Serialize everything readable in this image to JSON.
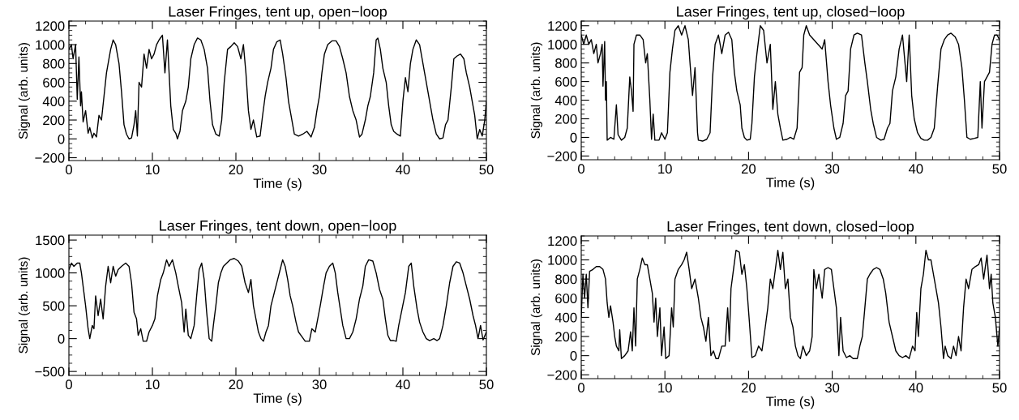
{
  "chart_data": [
    {
      "type": "line",
      "title": "Laser Fringes, tent up, open−loop",
      "xlabel": "Time (s)",
      "ylabel": "Signal (arb. units)",
      "xlim": [
        0,
        50
      ],
      "ylim": [
        -230,
        1250
      ],
      "xticks": [
        0,
        10,
        20,
        30,
        40,
        50
      ],
      "yticks": [
        -200,
        0,
        200,
        400,
        600,
        800,
        1000,
        1200
      ],
      "x": [
        0,
        0.3,
        0.5,
        0.8,
        1.0,
        1.2,
        1.4,
        1.5,
        1.7,
        2.0,
        2.3,
        2.5,
        2.8,
        3.0,
        3.3,
        3.6,
        3.9,
        4.2,
        4.5,
        4.8,
        5.0,
        5.3,
        5.6,
        6.0,
        6.3,
        6.6,
        6.9,
        7.2,
        7.5,
        7.8,
        8.0,
        8.2,
        8.4,
        8.7,
        9.0,
        9.3,
        9.6,
        9.9,
        10.2,
        10.5,
        10.8,
        11.2,
        11.5,
        11.8,
        12.0,
        12.2,
        12.5,
        12.8,
        13.0,
        13.3,
        13.6,
        14.0,
        14.3,
        14.6,
        15.0,
        15.4,
        15.8,
        16.2,
        16.6,
        16.9,
        17.2,
        17.6,
        18.0,
        18.3,
        18.6,
        19.0,
        19.4,
        19.8,
        20.2,
        20.6,
        20.9,
        21.2,
        21.5,
        21.8,
        22.1,
        22.5,
        22.9,
        23.2,
        23.5,
        23.8,
        24.2,
        24.5,
        24.9,
        25.3,
        25.6,
        26.0,
        26.3,
        26.6,
        27.0,
        27.5,
        28.0,
        28.5,
        29.0,
        29.4,
        29.7,
        30.0,
        30.3,
        30.6,
        31.0,
        31.5,
        32.0,
        32.4,
        32.8,
        33.2,
        33.6,
        34.0,
        34.4,
        34.8,
        35.1,
        35.5,
        35.8,
        36.1,
        36.5,
        36.8,
        37.0,
        37.3,
        37.6,
        38.0,
        38.3,
        38.6,
        38.9,
        39.3,
        39.7,
        40.0,
        40.3,
        40.6,
        40.9,
        41.2,
        41.6,
        42.0,
        42.3,
        42.6,
        43.0,
        43.3,
        43.6,
        44.0,
        44.4,
        44.8,
        45.1,
        45.4,
        45.8,
        46.1,
        46.5,
        46.9,
        47.3,
        47.6,
        48.0,
        48.3,
        48.6,
        48.9,
        49.2,
        49.5,
        49.8,
        50.0
      ],
      "series": [
        {
          "color": "#000000",
          "values": [
            950,
            1000,
            850,
            1000,
            420,
            870,
            350,
            500,
            180,
            300,
            60,
            120,
            10,
            60,
            20,
            250,
            200,
            450,
            700,
            850,
            950,
            1050,
            1000,
            800,
            500,
            150,
            50,
            0,
            10,
            150,
            300,
            30,
            600,
            550,
            900,
            750,
            950,
            850,
            900,
            1000,
            1050,
            1100,
            700,
            1050,
            700,
            350,
            100,
            60,
            0,
            80,
            300,
            400,
            550,
            850,
            1000,
            1070,
            1050,
            950,
            750,
            400,
            150,
            50,
            30,
            200,
            600,
            950,
            980,
            1020,
            980,
            850,
            1000,
            700,
            300,
            100,
            200,
            20,
            30,
            250,
            450,
            600,
            750,
            950,
            1030,
            1050,
            900,
            650,
            400,
            250,
            50,
            30,
            50,
            80,
            20,
            120,
            300,
            450,
            700,
            900,
            1000,
            1040,
            1040,
            980,
            850,
            700,
            450,
            300,
            200,
            20,
            50,
            200,
            350,
            450,
            700,
            1050,
            1070,
            950,
            750,
            600,
            350,
            150,
            80,
            50,
            30,
            400,
            650,
            500,
            800,
            950,
            1050,
            1000,
            850,
            700,
            500,
            350,
            200,
            50,
            0,
            10,
            150,
            200,
            550,
            850,
            880,
            900,
            850,
            700,
            550,
            400,
            250,
            0,
            100,
            30,
            200,
            400
          ]
        }
      ]
    },
    {
      "type": "line",
      "title": "Laser Fringes, tent up, closed−loop",
      "xlabel": "Time (s)",
      "ylabel": "Signal (arb. units)",
      "xlim": [
        0,
        50
      ],
      "ylim": [
        -240,
        1250
      ],
      "xticks": [
        0,
        10,
        20,
        30,
        40,
        50
      ],
      "yticks": [
        -200,
        0,
        200,
        400,
        600,
        800,
        1000,
        1200
      ],
      "x": [
        0,
        0.3,
        0.6,
        0.9,
        1.2,
        1.5,
        1.8,
        2.0,
        2.3,
        2.5,
        2.6,
        2.8,
        2.9,
        3.0,
        3.1,
        3.5,
        3.9,
        4.2,
        4.4,
        4.8,
        5.2,
        5.5,
        5.8,
        6.0,
        6.2,
        6.3,
        6.6,
        7.0,
        7.4,
        7.7,
        7.9,
        8.2,
        8.4,
        8.6,
        8.8,
        9.3,
        9.6,
        10.0,
        10.3,
        10.6,
        10.9,
        11.2,
        11.6,
        12.0,
        12.4,
        12.8,
        13.0,
        13.3,
        13.6,
        13.9,
        14.0,
        14.5,
        15.0,
        15.4,
        15.7,
        16.0,
        16.4,
        16.8,
        17.2,
        17.6,
        18.0,
        18.3,
        18.6,
        19.0,
        19.2,
        19.5,
        19.8,
        20.2,
        20.4,
        20.7,
        21.0,
        21.4,
        21.8,
        22.2,
        22.6,
        22.9,
        23.2,
        23.5,
        23.8,
        24.1,
        24.6,
        25.0,
        25.4,
        25.8,
        26.1,
        26.4,
        26.6,
        26.9,
        27.3,
        27.8,
        28.3,
        28.8,
        29.1,
        29.5,
        29.8,
        30.2,
        30.5,
        30.9,
        31.3,
        31.6,
        31.9,
        32.2,
        32.6,
        33.0,
        33.5,
        33.9,
        34.2,
        34.6,
        34.9,
        35.3,
        35.8,
        36.2,
        36.6,
        36.9,
        37.2,
        37.6,
        38.0,
        38.4,
        38.9,
        39.2,
        39.5,
        39.8,
        40.2,
        40.6,
        41.0,
        41.4,
        41.8,
        42.2,
        42.6,
        43.0,
        43.4,
        43.8,
        44.2,
        44.7,
        45.1,
        45.5,
        45.8,
        46.1,
        46.5,
        47.0,
        47.4,
        47.7,
        47.9,
        48.2,
        48.5,
        48.8,
        49.1,
        49.4,
        49.7,
        50.0
      ],
      "series": [
        {
          "color": "#000000",
          "values": [
            1100,
            1000,
            1100,
            1000,
            1050,
            900,
            1000,
            800,
            900,
            1000,
            550,
            1030,
            400,
            600,
            -30,
            0,
            -20,
            350,
            30,
            -30,
            0,
            100,
            650,
            500,
            280,
            1000,
            1100,
            1100,
            1050,
            800,
            900,
            400,
            -20,
            250,
            -30,
            -30,
            50,
            -20,
            50,
            700,
            950,
            1150,
            1200,
            1100,
            1200,
            1050,
            800,
            450,
            750,
            50,
            -30,
            -40,
            -20,
            50,
            650,
            1000,
            1100,
            900,
            1100,
            1130,
            1050,
            700,
            500,
            350,
            100,
            0,
            -30,
            -20,
            150,
            650,
            900,
            1200,
            1150,
            800,
            1000,
            300,
            600,
            250,
            100,
            -30,
            -20,
            0,
            -20,
            100,
            700,
            750,
            1100,
            1200,
            1100,
            1050,
            1000,
            950,
            1050,
            600,
            350,
            100,
            -20,
            0,
            150,
            450,
            500,
            950,
            1100,
            1120,
            1100,
            800,
            600,
            300,
            150,
            0,
            -30,
            -20,
            100,
            150,
            500,
            650,
            950,
            1100,
            600,
            1100,
            450,
            200,
            50,
            -10,
            -30,
            -30,
            0,
            100,
            550,
            950,
            1050,
            1100,
            1120,
            1080,
            1000,
            750,
            400,
            0,
            -20,
            -10,
            0,
            600,
            100,
            600,
            650,
            700,
            1000,
            1100,
            1100,
            1050
          ]
        }
      ]
    },
    {
      "type": "line",
      "title": "Laser Fringes, tent down, open−loop",
      "xlabel": "Time (s)",
      "ylabel": "Signal (arb. units)",
      "xlim": [
        0,
        50
      ],
      "ylim": [
        -560,
        1575
      ],
      "xticks": [
        0,
        10,
        20,
        30,
        40,
        50
      ],
      "yticks": [
        -500,
        0,
        500,
        1000,
        1500
      ],
      "x": [
        0,
        0.3,
        0.6,
        1.0,
        1.3,
        1.5,
        1.8,
        2.0,
        2.3,
        2.5,
        2.8,
        3.0,
        3.2,
        3.5,
        3.8,
        4.1,
        4.4,
        4.7,
        5.0,
        5.3,
        5.6,
        5.9,
        6.3,
        6.8,
        7.2,
        7.5,
        7.8,
        8.1,
        8.3,
        8.6,
        8.9,
        9.3,
        9.6,
        10.0,
        10.3,
        10.6,
        11.0,
        11.3,
        11.7,
        12.0,
        12.4,
        12.8,
        13.1,
        13.5,
        13.8,
        14.0,
        14.3,
        14.6,
        15.0,
        15.3,
        15.6,
        15.9,
        16.2,
        16.5,
        16.8,
        17.1,
        17.3,
        17.6,
        17.9,
        18.2,
        18.5,
        18.9,
        19.3,
        19.8,
        20.3,
        20.7,
        21.1,
        21.5,
        21.8,
        22.1,
        22.4,
        22.7,
        23.0,
        23.3,
        23.6,
        23.9,
        24.2,
        24.6,
        25.0,
        25.3,
        25.6,
        25.9,
        26.2,
        26.5,
        26.8,
        27.2,
        27.5,
        27.9,
        28.3,
        28.8,
        29.1,
        29.5,
        29.8,
        30.1,
        30.5,
        30.8,
        31.2,
        31.6,
        31.9,
        32.2,
        32.5,
        32.8,
        33.2,
        33.6,
        34.0,
        34.4,
        34.8,
        35.2,
        35.5,
        35.9,
        36.4,
        36.8,
        37.2,
        37.6,
        37.9,
        38.2,
        38.5,
        38.9,
        39.2,
        39.5,
        39.9,
        40.3,
        40.7,
        41.0,
        41.3,
        41.7,
        42.0,
        42.4,
        42.8,
        43.2,
        43.7,
        44.1,
        44.4,
        44.8,
        45.2,
        45.6,
        46.0,
        46.4,
        46.8,
        47.2,
        47.6,
        48.0,
        48.4,
        48.7,
        49.0,
        49.3,
        49.6,
        50.0
      ],
      "series": [
        {
          "color": "#000000",
          "values": [
            1050,
            1150,
            1100,
            1150,
            1150,
            1000,
            700,
            500,
            150,
            0,
            200,
            150,
            650,
            350,
            600,
            300,
            800,
            1100,
            850,
            1100,
            950,
            1050,
            1100,
            1150,
            1100,
            850,
            400,
            300,
            50,
            150,
            -40,
            -40,
            100,
            200,
            300,
            650,
            900,
            1000,
            1200,
            1100,
            1200,
            1000,
            800,
            550,
            100,
            450,
            50,
            0,
            200,
            650,
            1050,
            1150,
            900,
            400,
            0,
            -40,
            200,
            500,
            850,
            1000,
            1100,
            1150,
            1200,
            1220,
            1180,
            1100,
            850,
            700,
            900,
            500,
            300,
            100,
            0,
            -40,
            100,
            200,
            500,
            700,
            900,
            1050,
            1200,
            1100,
            900,
            650,
            500,
            250,
            100,
            30,
            -40,
            -40,
            150,
            100,
            300,
            500,
            800,
            1000,
            1100,
            1150,
            1000,
            700,
            450,
            200,
            0,
            0,
            100,
            300,
            600,
            800,
            1100,
            1200,
            1180,
            1000,
            750,
            600,
            300,
            50,
            -30,
            -30,
            -40,
            200,
            450,
            700,
            1100,
            1150,
            800,
            450,
            250,
            100,
            0,
            -30,
            0,
            -30,
            0,
            200,
            500,
            850,
            1100,
            1170,
            1150,
            1000,
            800,
            600,
            350,
            200,
            0,
            200,
            -20,
            100
          ]
        }
      ]
    },
    {
      "type": "line",
      "title": "Laser Fringes, tent down, closed−loop",
      "xlabel": "Time (s)",
      "ylabel": "Signal (arb. units)",
      "xlim": [
        0,
        50
      ],
      "ylim": [
        -240,
        1250
      ],
      "xticks": [
        0,
        10,
        20,
        30,
        40,
        50
      ],
      "yticks": [
        -200,
        0,
        200,
        400,
        600,
        800,
        1000,
        1200
      ],
      "x": [
        0,
        0.2,
        0.4,
        0.6,
        0.8,
        1.0,
        1.4,
        1.8,
        2.2,
        2.6,
        2.9,
        3.1,
        3.3,
        3.5,
        3.8,
        4.0,
        4.2,
        4.5,
        4.6,
        4.8,
        5.2,
        5.6,
        5.9,
        6.1,
        6.3,
        6.5,
        6.7,
        7.0,
        7.3,
        7.6,
        7.9,
        8.2,
        8.5,
        8.7,
        8.9,
        9.1,
        9.4,
        9.6,
        9.9,
        10.1,
        10.5,
        10.8,
        11.0,
        11.2,
        11.6,
        12.0,
        12.3,
        12.6,
        12.9,
        13.2,
        13.6,
        14.0,
        14.3,
        14.6,
        14.9,
        15.2,
        15.5,
        15.8,
        16.1,
        16.4,
        16.8,
        17.2,
        17.5,
        17.7,
        17.9,
        18.2,
        18.5,
        18.9,
        19.2,
        19.5,
        19.8,
        20.1,
        20.4,
        20.8,
        21.2,
        21.6,
        22.0,
        22.3,
        22.6,
        22.9,
        23.2,
        23.5,
        23.8,
        24.1,
        24.4,
        24.7,
        25.0,
        25.3,
        25.6,
        25.9,
        26.2,
        26.5,
        26.9,
        27.3,
        27.6,
        27.8,
        28.1,
        28.4,
        28.8,
        29.1,
        29.5,
        29.9,
        30.2,
        30.5,
        30.8,
        31.0,
        31.3,
        31.7,
        32.1,
        32.5,
        33.0,
        33.3,
        33.6,
        33.9,
        34.2,
        34.5,
        34.9,
        35.3,
        35.7,
        36.1,
        36.4,
        36.8,
        37.2,
        37.6,
        38.0,
        38.4,
        38.8,
        39.2,
        39.6,
        39.9,
        40.1,
        40.3,
        40.6,
        40.9,
        41.2,
        41.5,
        41.8,
        42.1,
        42.4,
        42.7,
        43.0,
        43.3,
        43.5,
        43.8,
        44.2,
        44.5,
        44.8,
        45.1,
        45.4,
        45.7,
        46.0,
        46.3,
        46.7,
        47.1,
        47.5,
        47.8,
        48.1,
        48.5,
        48.8,
        49.0,
        49.2,
        49.5,
        49.8,
        50.0
      ],
      "series": [
        {
          "color": "#000000",
          "values": [
            400,
            850,
            600,
            850,
            500,
            880,
            900,
            930,
            930,
            900,
            800,
            550,
            400,
            520,
            350,
            200,
            100,
            50,
            270,
            -30,
            0,
            50,
            250,
            50,
            500,
            100,
            800,
            900,
            1020,
            950,
            950,
            800,
            650,
            350,
            600,
            200,
            500,
            0,
            300,
            -30,
            0,
            500,
            300,
            800,
            900,
            950,
            1000,
            1080,
            900,
            700,
            800,
            600,
            400,
            300,
            150,
            400,
            0,
            50,
            -30,
            -30,
            100,
            100,
            500,
            150,
            700,
            900,
            1100,
            1080,
            850,
            950,
            700,
            350,
            -20,
            0,
            100,
            50,
            300,
            500,
            800,
            700,
            900,
            1100,
            900,
            1080,
            700,
            800,
            400,
            300,
            100,
            0,
            -30,
            100,
            0,
            50,
            200,
            900,
            700,
            850,
            600,
            900,
            920,
            900,
            700,
            500,
            0,
            400,
            50,
            -20,
            0,
            -30,
            -30,
            100,
            200,
            500,
            800,
            850,
            900,
            920,
            900,
            800,
            650,
            350,
            200,
            50,
            0,
            -20,
            0,
            -30,
            100,
            50,
            450,
            200,
            700,
            850,
            1100,
            1000,
            1000,
            850,
            700,
            550,
            300,
            -30,
            100,
            0,
            -30,
            100,
            0,
            200,
            50,
            500,
            800,
            700,
            900,
            930,
            950,
            1020,
            800,
            1050,
            700,
            850,
            550,
            400,
            100,
            300
          ]
        }
      ]
    }
  ]
}
